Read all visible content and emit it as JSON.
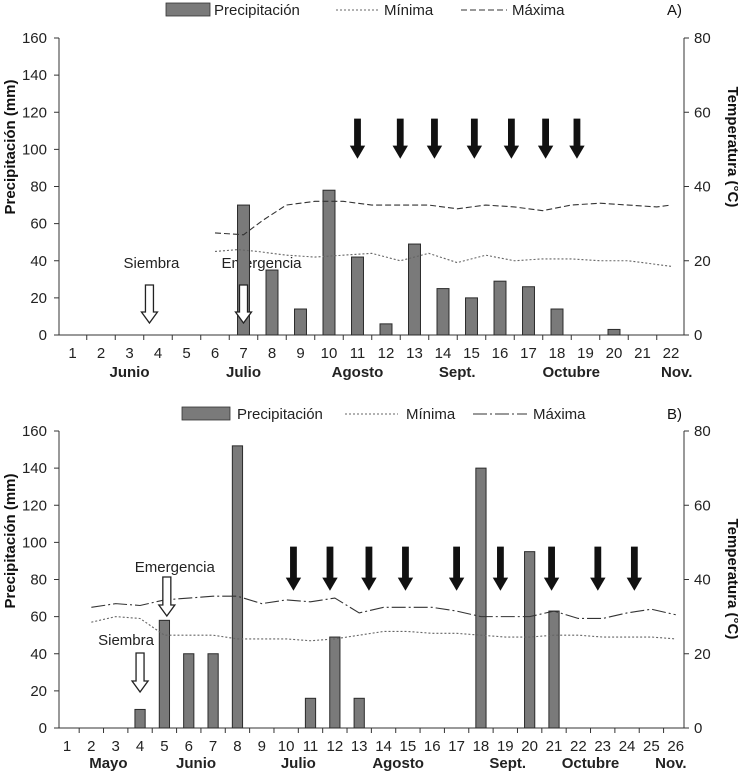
{
  "chart_data": [
    {
      "type": "bar",
      "panel_label": "A)",
      "legend": {
        "precip": "Precipitación",
        "min": "Mínima",
        "max": "Máxima"
      },
      "x": [
        1,
        2,
        3,
        4,
        5,
        6,
        7,
        8,
        9,
        10,
        11,
        12,
        13,
        14,
        15,
        16,
        17,
        18,
        19,
        20,
        21,
        22
      ],
      "x_ticks": [
        "1",
        "2",
        "3",
        "4",
        "5",
        "6",
        "7",
        "8",
        "9",
        "10",
        "11",
        "12",
        "13",
        "14",
        "15",
        "16",
        "17",
        "18",
        "19",
        "20",
        "21",
        "22"
      ],
      "months": [
        {
          "label": "Junio",
          "x": 3
        },
        {
          "label": "Julio",
          "x": 7
        },
        {
          "label": "Agosto",
          "x": 11
        },
        {
          "label": "Sept.",
          "x": 14.5
        },
        {
          "label": "Octubre",
          "x": 18.5
        },
        {
          "label": "Nov.",
          "x": 22.2
        }
      ],
      "ylabel_left": "Precipitación (mm)",
      "ylabel_right": "Temperatura (°C)",
      "ylim_left": [
        0,
        160
      ],
      "yticks_left": [
        "0",
        "20",
        "40",
        "60",
        "80",
        "100",
        "120",
        "140",
        "160"
      ],
      "ylim_right": [
        0,
        80
      ],
      "yticks_right": [
        "0",
        "20",
        "40",
        "60",
        "80"
      ],
      "precipitation": {
        "name": "Precipitación",
        "x": [
          7,
          8,
          9,
          10,
          11,
          12,
          13,
          14,
          15,
          16,
          17,
          18,
          20
        ],
        "values": [
          70,
          35,
          14,
          78,
          42,
          6,
          49,
          25,
          20,
          29,
          26,
          14,
          3
        ]
      },
      "temp_min": {
        "name": "Mínima",
        "x": [
          6,
          6.8,
          7.5,
          8.5,
          9.5,
          10.5,
          11.5,
          12.5,
          13.5,
          14.5,
          15.5,
          16.5,
          17.5,
          18.5,
          19.5,
          20.5,
          21.5,
          22
        ],
        "values": [
          22.5,
          23,
          22.5,
          21.5,
          21,
          21.5,
          22,
          20,
          22,
          19.5,
          21.5,
          20,
          20.5,
          20.5,
          20,
          20,
          19,
          18.5
        ]
      },
      "temp_max": {
        "name": "Máxima",
        "x": [
          6,
          7,
          7.7,
          8.5,
          9.5,
          10.5,
          11.5,
          12.5,
          13.5,
          14.5,
          15.5,
          16.5,
          17.5,
          18.5,
          19.5,
          20.5,
          21.5,
          22
        ],
        "values": [
          27.5,
          27,
          31,
          35,
          36,
          36,
          35,
          35,
          35,
          34,
          35,
          34.5,
          33.5,
          35,
          35.5,
          35,
          34.5,
          35
        ]
      },
      "annotations": [
        {
          "text": "Siembra",
          "arrow_x": 3.7
        },
        {
          "text": "Emergencia",
          "arrow_x": 7
        }
      ],
      "operation_arrows_x": [
        11,
        12.5,
        13.7,
        15.1,
        16.4,
        17.6,
        18.7
      ]
    },
    {
      "type": "bar",
      "panel_label": "B)",
      "legend": {
        "precip": "Precipitación",
        "min": "Mínima",
        "max": "Máxima"
      },
      "x": [
        1,
        2,
        3,
        4,
        5,
        6,
        7,
        8,
        9,
        10,
        11,
        12,
        13,
        14,
        15,
        16,
        17,
        18,
        19,
        20,
        21,
        22,
        23,
        24,
        25,
        26
      ],
      "x_ticks": [
        "1",
        "2",
        "3",
        "4",
        "5",
        "6",
        "7",
        "8",
        "9",
        "10",
        "11",
        "12",
        "13",
        "14",
        "15",
        "16",
        "17",
        "18",
        "19",
        "20",
        "21",
        "22",
        "23",
        "24",
        "25",
        "26"
      ],
      "months": [
        {
          "label": "Mayo",
          "x": 2.7
        },
        {
          "label": "Junio",
          "x": 6.3
        },
        {
          "label": "Julio",
          "x": 10.5
        },
        {
          "label": "Agosto",
          "x": 14.6
        },
        {
          "label": "Sept.",
          "x": 19.1
        },
        {
          "label": "Octubre",
          "x": 22.5
        },
        {
          "label": "Nov.",
          "x": 25.8
        }
      ],
      "ylabel_left": "Precipitación (mm)",
      "ylabel_right": "Temperatura (°C)",
      "ylim_left": [
        0,
        160
      ],
      "yticks_left": [
        "0",
        "20",
        "40",
        "60",
        "80",
        "100",
        "120",
        "140",
        "160"
      ],
      "ylim_right": [
        0,
        80
      ],
      "yticks_right": [
        "0",
        "20",
        "40",
        "60",
        "80"
      ],
      "precipitation": {
        "name": "Precipitación",
        "x": [
          4,
          5,
          6,
          7,
          8,
          11,
          12,
          13,
          18,
          20,
          21
        ],
        "values": [
          10,
          58,
          40,
          40,
          152,
          16,
          49,
          16,
          140,
          95,
          63
        ]
      },
      "temp_min": {
        "name": "Mínima",
        "x": [
          2,
          3,
          4,
          5,
          6,
          7,
          8,
          9,
          10,
          11,
          12,
          13,
          14,
          15,
          16,
          17,
          18,
          19,
          20,
          21,
          22,
          23,
          24,
          25,
          26
        ],
        "values": [
          28.5,
          30,
          29.5,
          25,
          25,
          25,
          24,
          24,
          24,
          23.5,
          24,
          25,
          26,
          26,
          25.5,
          25.5,
          25,
          24.5,
          24.5,
          25,
          25,
          24.5,
          24.5,
          24.5,
          24
        ]
      },
      "temp_max": {
        "name": "Máxima",
        "x": [
          2,
          3,
          4,
          5,
          6,
          7,
          8,
          9,
          10,
          11,
          12,
          13,
          14,
          15,
          16,
          17,
          18,
          19,
          20,
          21,
          22,
          23,
          24,
          25,
          26
        ],
        "values": [
          32.5,
          33.5,
          33,
          34.5,
          35,
          35.5,
          35.5,
          33.5,
          34.5,
          34,
          35,
          31,
          32.5,
          32.5,
          32.5,
          31.5,
          30,
          30,
          30,
          31.5,
          29.5,
          29.5,
          31,
          32,
          30.5
        ]
      },
      "annotations": [
        {
          "text": "Emergencia",
          "arrow_x": 5.1
        },
        {
          "text": "Siembra",
          "arrow_x": 4
        }
      ],
      "operation_arrows_x": [
        10.3,
        11.8,
        13.4,
        14.9,
        17,
        18.8,
        20.9,
        22.8,
        24.3
      ]
    }
  ]
}
